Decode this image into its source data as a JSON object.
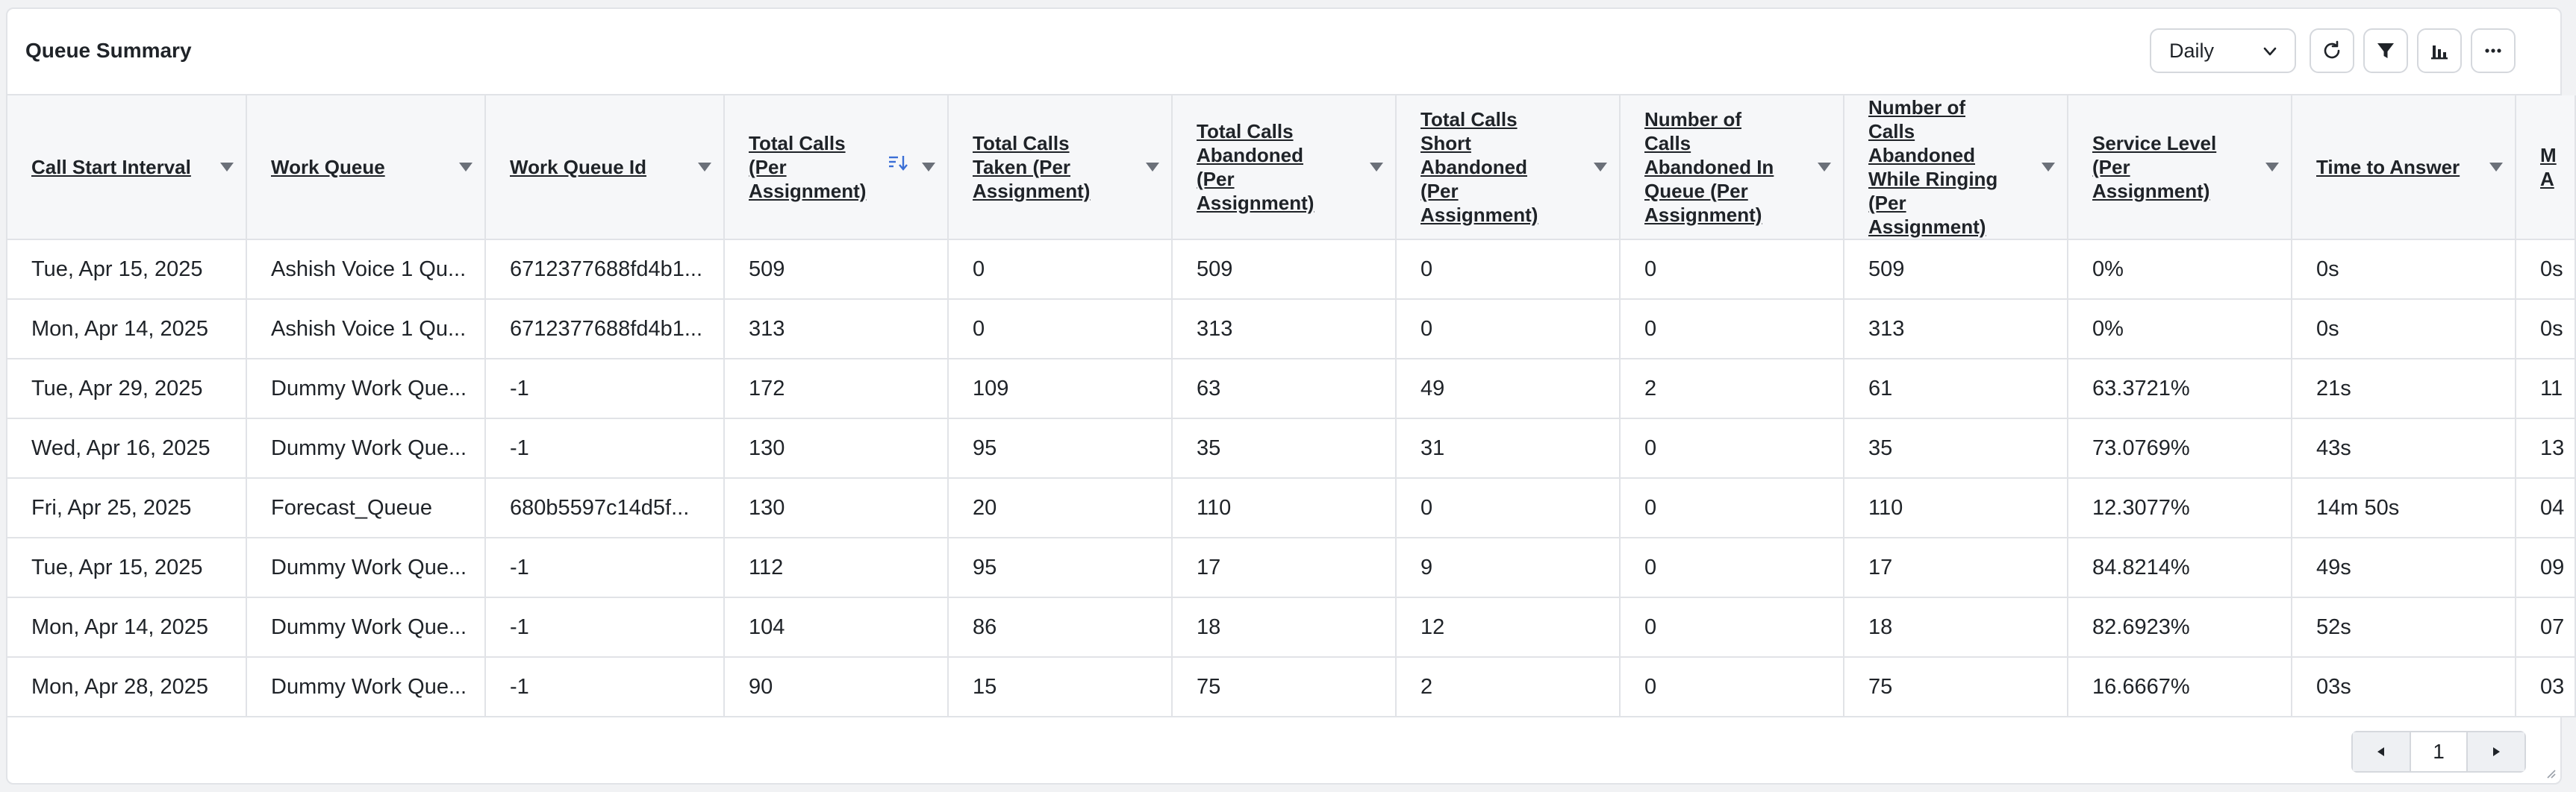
{
  "panel": {
    "title": "Queue Summary",
    "granularity": {
      "selected": "Daily"
    },
    "toolbar_icons": [
      "refresh-icon",
      "filter-icon",
      "bar-chart-icon",
      "more-icon"
    ]
  },
  "table": {
    "columns": [
      {
        "label": "Call Start Interval"
      },
      {
        "label": "Work Queue"
      },
      {
        "label": "Work Queue Id"
      },
      {
        "label": "Total Calls (Per Assignment)",
        "sorted": "descending"
      },
      {
        "label": "Total Calls Taken (Per Assignment)"
      },
      {
        "label": "Total Calls Abandoned (Per Assignment)"
      },
      {
        "label": "Total Calls Short Abandoned (Per Assignment)"
      },
      {
        "label": "Number of Calls Abandoned In Queue (Per Assignment)"
      },
      {
        "label": "Number of Calls Abandoned While Ringing (Per Assignment)"
      },
      {
        "label": "Service Level (Per Assignment)"
      },
      {
        "label": "Time to Answer"
      },
      {
        "label": "M A"
      }
    ],
    "rows": [
      [
        "Tue, Apr 15, 2025",
        "Ashish Voice 1 Qu...",
        "6712377688fd4b1...",
        "509",
        "0",
        "509",
        "0",
        "0",
        "509",
        "0%",
        "0s",
        "0s"
      ],
      [
        "Mon, Apr 14, 2025",
        "Ashish Voice 1 Qu...",
        "6712377688fd4b1...",
        "313",
        "0",
        "313",
        "0",
        "0",
        "313",
        "0%",
        "0s",
        "0s"
      ],
      [
        "Tue, Apr 29, 2025",
        "Dummy Work Que...",
        "-1",
        "172",
        "109",
        "63",
        "49",
        "2",
        "61",
        "63.3721%",
        "21s",
        "11"
      ],
      [
        "Wed, Apr 16, 2025",
        "Dummy Work Que...",
        "-1",
        "130",
        "95",
        "35",
        "31",
        "0",
        "35",
        "73.0769%",
        "43s",
        "13"
      ],
      [
        "Fri, Apr 25, 2025",
        "Forecast_Queue",
        "680b5597c14d5f...",
        "130",
        "20",
        "110",
        "0",
        "0",
        "110",
        "12.3077%",
        "14m 50s",
        "04"
      ],
      [
        "Tue, Apr 15, 2025",
        "Dummy Work Que...",
        "-1",
        "112",
        "95",
        "17",
        "9",
        "0",
        "17",
        "84.8214%",
        "49s",
        "09"
      ],
      [
        "Mon, Apr 14, 2025",
        "Dummy Work Que...",
        "-1",
        "104",
        "86",
        "18",
        "12",
        "0",
        "18",
        "82.6923%",
        "52s",
        "07"
      ],
      [
        "Mon, Apr 28, 2025",
        "Dummy Work Que...",
        "-1",
        "90",
        "15",
        "75",
        "2",
        "0",
        "75",
        "16.6667%",
        "03s",
        "03"
      ]
    ]
  },
  "pagination": {
    "current_page": "1",
    "prev_icon": "chevron-left-icon",
    "next_icon": "chevron-right-icon"
  },
  "colors": {
    "sort_accent": "#3b6fd6",
    "caret": "#6b7079",
    "border": "#e1e3e7",
    "header_bg": "#f6f7f9"
  }
}
